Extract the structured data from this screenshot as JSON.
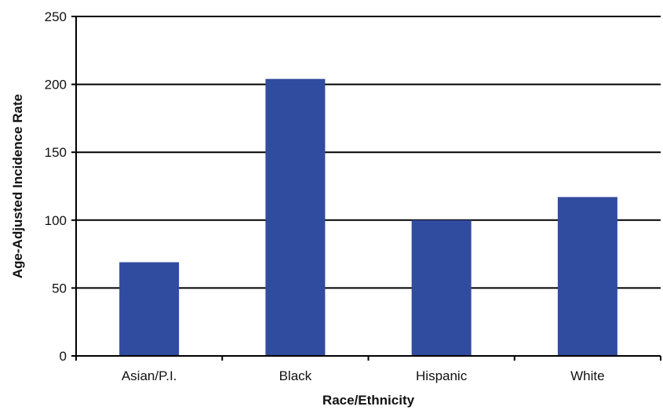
{
  "chart_data": {
    "type": "bar",
    "title": "",
    "xlabel": "Race/Ethnicity",
    "ylabel": "Age-Adjusted Incidence Rate",
    "categories": [
      "Asian/P.I.",
      "Black",
      "Hispanic",
      "White"
    ],
    "values": [
      69,
      204,
      100,
      117
    ],
    "ylim": [
      0,
      250
    ],
    "yticks": [
      0,
      50,
      100,
      150,
      200,
      250
    ],
    "grid": true,
    "legend": "none",
    "bar_color": "#304c9e",
    "gridline_color": "#000000"
  }
}
